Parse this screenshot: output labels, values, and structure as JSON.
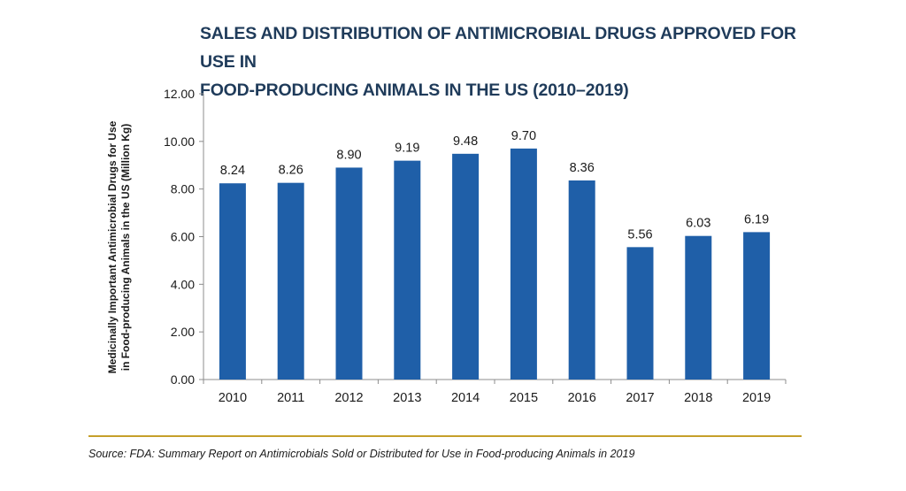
{
  "chart_data": {
    "type": "bar",
    "title": "SALES AND DISTRIBUTION OF ANTIMICROBIAL DRUGS APPROVED FOR USE IN FOOD-PRODUCING ANIMALS IN THE US (2010–2019)",
    "title_lines": [
      "SALES AND DISTRIBUTION OF ANTIMICROBIAL DRUGS APPROVED FOR USE IN",
      "FOOD-PRODUCING ANIMALS IN THE US (2010–2019)"
    ],
    "ylabel": "Medicinally Important Antimicrobial Drugs for Use in Food-producing Animals in the US (Million Kg)",
    "ylabel_lines": [
      "Medicinally Important Antimicrobial Drugs for Use",
      "in Food-producing Animals in the US (Million Kg)"
    ],
    "xlabel": "",
    "categories": [
      "2010",
      "2011",
      "2012",
      "2013",
      "2014",
      "2015",
      "2016",
      "2017",
      "2018",
      "2019"
    ],
    "values": [
      8.24,
      8.26,
      8.9,
      9.19,
      9.48,
      9.7,
      8.36,
      5.56,
      6.03,
      6.19
    ],
    "data_labels": [
      "8.24",
      "8.26",
      "8.90",
      "9.19",
      "9.48",
      "9.70",
      "8.36",
      "5.56",
      "6.03",
      "6.19"
    ],
    "ylim": [
      0,
      12
    ],
    "yticks": [
      "0.00",
      "2.00",
      "4.00",
      "6.00",
      "8.00",
      "10.00",
      "12.00"
    ],
    "grid": false,
    "legend": "none",
    "bar_color": "#1f5fa8"
  },
  "title_color": "#1f3b5a",
  "source": "Source: FDA: Summary Report on Antimicrobials Sold or Distributed for Use in Food-producing Animals in 2019",
  "rule_color": "#c6a02a"
}
